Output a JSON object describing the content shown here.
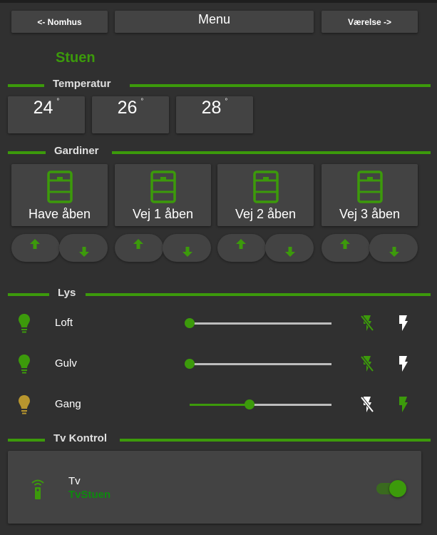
{
  "nav": {
    "prev_label": "<- Nomhus",
    "menu_label": "Menu",
    "next_label": "Værelse ->"
  },
  "room": "Stuen",
  "colors": {
    "accent": "#3c9a0b",
    "background": "#303030",
    "tile": "#434343",
    "bulb_on": "#b8962e"
  },
  "temperature": {
    "title": "Temperatur",
    "values": [
      "24",
      "26",
      "28"
    ],
    "unit": "°"
  },
  "curtains": {
    "title": "Gardiner",
    "items": [
      {
        "label": "Have åben",
        "icon": "window-shutter-icon"
      },
      {
        "label": "Vej 1 åben",
        "icon": "window-shutter-icon"
      },
      {
        "label": "Vej 2 åben",
        "icon": "window-shutter-icon"
      },
      {
        "label": "Vej 3 åben",
        "icon": "window-shutter-icon"
      }
    ]
  },
  "lights": {
    "title": "Lys",
    "items": [
      {
        "label": "Loft",
        "level": 0,
        "state": "off"
      },
      {
        "label": "Gulv",
        "level": 0,
        "state": "off"
      },
      {
        "label": "Gang",
        "level": 0.42,
        "state": "on"
      }
    ]
  },
  "tv": {
    "title": "Tv Kontrol",
    "name": "Tv",
    "entity": "TvStuen",
    "on": true
  }
}
